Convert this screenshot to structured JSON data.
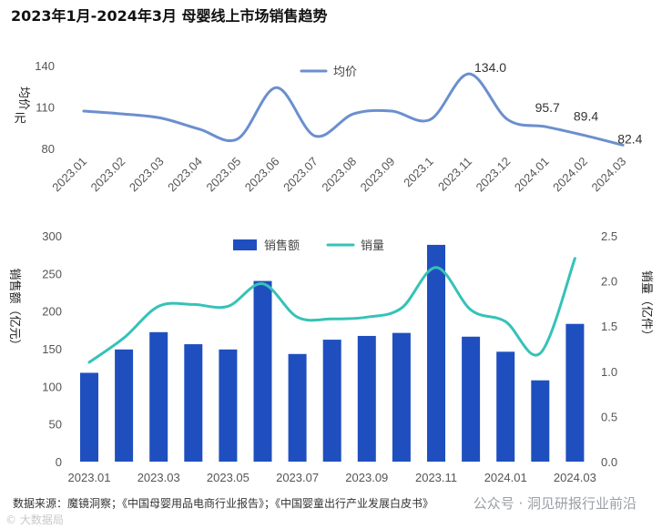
{
  "title": "2023年1月-2024年3月  母婴线上市场销售趋势",
  "source_note": "数据来源：魔镜洞察；《中国母婴用品电商行业报告》；《中国婴童出行产业发展白皮书》",
  "watermark_right": "公众号 · 洞见研报行业前沿",
  "watermark_left": "© 大数据局",
  "colors": {
    "line_top": "#6b8fce",
    "bar": "#1f4fbf",
    "line_bottom": "#36c2b8"
  },
  "chart_data": [
    {
      "type": "line",
      "legend": [
        "均价"
      ],
      "ylabel": "均价\n元",
      "yticks": [
        80,
        110,
        140
      ],
      "ylim": [
        80,
        140
      ],
      "categories": [
        "2023.01",
        "2023.02",
        "2023.03",
        "2023.04",
        "2023.05",
        "2023.06",
        "2023.07",
        "2023.08",
        "2023.09",
        "2023.1",
        "2023.11",
        "2023.12",
        "2024.01",
        "2024.02",
        "2024.03"
      ],
      "series": [
        {
          "name": "均价",
          "values": [
            107,
            105,
            102,
            94,
            87,
            124,
            89,
            105,
            107,
            101,
            134,
            101,
            95.7,
            89.4,
            82.4
          ]
        }
      ],
      "data_labels": [
        {
          "index": 10,
          "text": "134.0"
        },
        {
          "index": 12,
          "text": "95.7"
        },
        {
          "index": 13,
          "text": "89.4"
        },
        {
          "index": 14,
          "text": "82.4"
        }
      ]
    },
    {
      "type": "bar",
      "legend": [
        "销售额",
        "销量"
      ],
      "ylabel_left": "销售额（亿元）",
      "ylabel_right": "销量（亿件）",
      "yticks_left": [
        0,
        50,
        100,
        150,
        200,
        250,
        300
      ],
      "ylim_left": [
        0,
        300
      ],
      "yticks_right": [
        "0.0",
        "0.5",
        "1.0",
        "1.5",
        "2.0",
        "2.5"
      ],
      "ylim_right": [
        0,
        2.5
      ],
      "categories": [
        "2023.01",
        "2023.02",
        "2023.03",
        "2023.04",
        "2023.05",
        "2023.06",
        "2023.07",
        "2023.08",
        "2023.09",
        "2023.10",
        "2023.11",
        "2023.12",
        "2024.01",
        "2024.02",
        "2024.03"
      ],
      "xtick_labels": [
        "2023.01",
        "2023.03",
        "2023.05",
        "2023.07",
        "2023.09",
        "2023.11",
        "2024.01",
        "2024.03"
      ],
      "series": [
        {
          "name": "销售额",
          "axis": "left",
          "values": [
            118,
            149,
            172,
            156,
            149,
            240,
            143,
            162,
            167,
            171,
            288,
            166,
            146,
            108,
            183
          ]
        },
        {
          "name": "销量",
          "axis": "right",
          "values": [
            1.1,
            1.37,
            1.72,
            1.74,
            1.72,
            1.97,
            1.6,
            1.58,
            1.6,
            1.7,
            2.15,
            1.68,
            1.55,
            1.2,
            2.25
          ]
        }
      ]
    }
  ]
}
